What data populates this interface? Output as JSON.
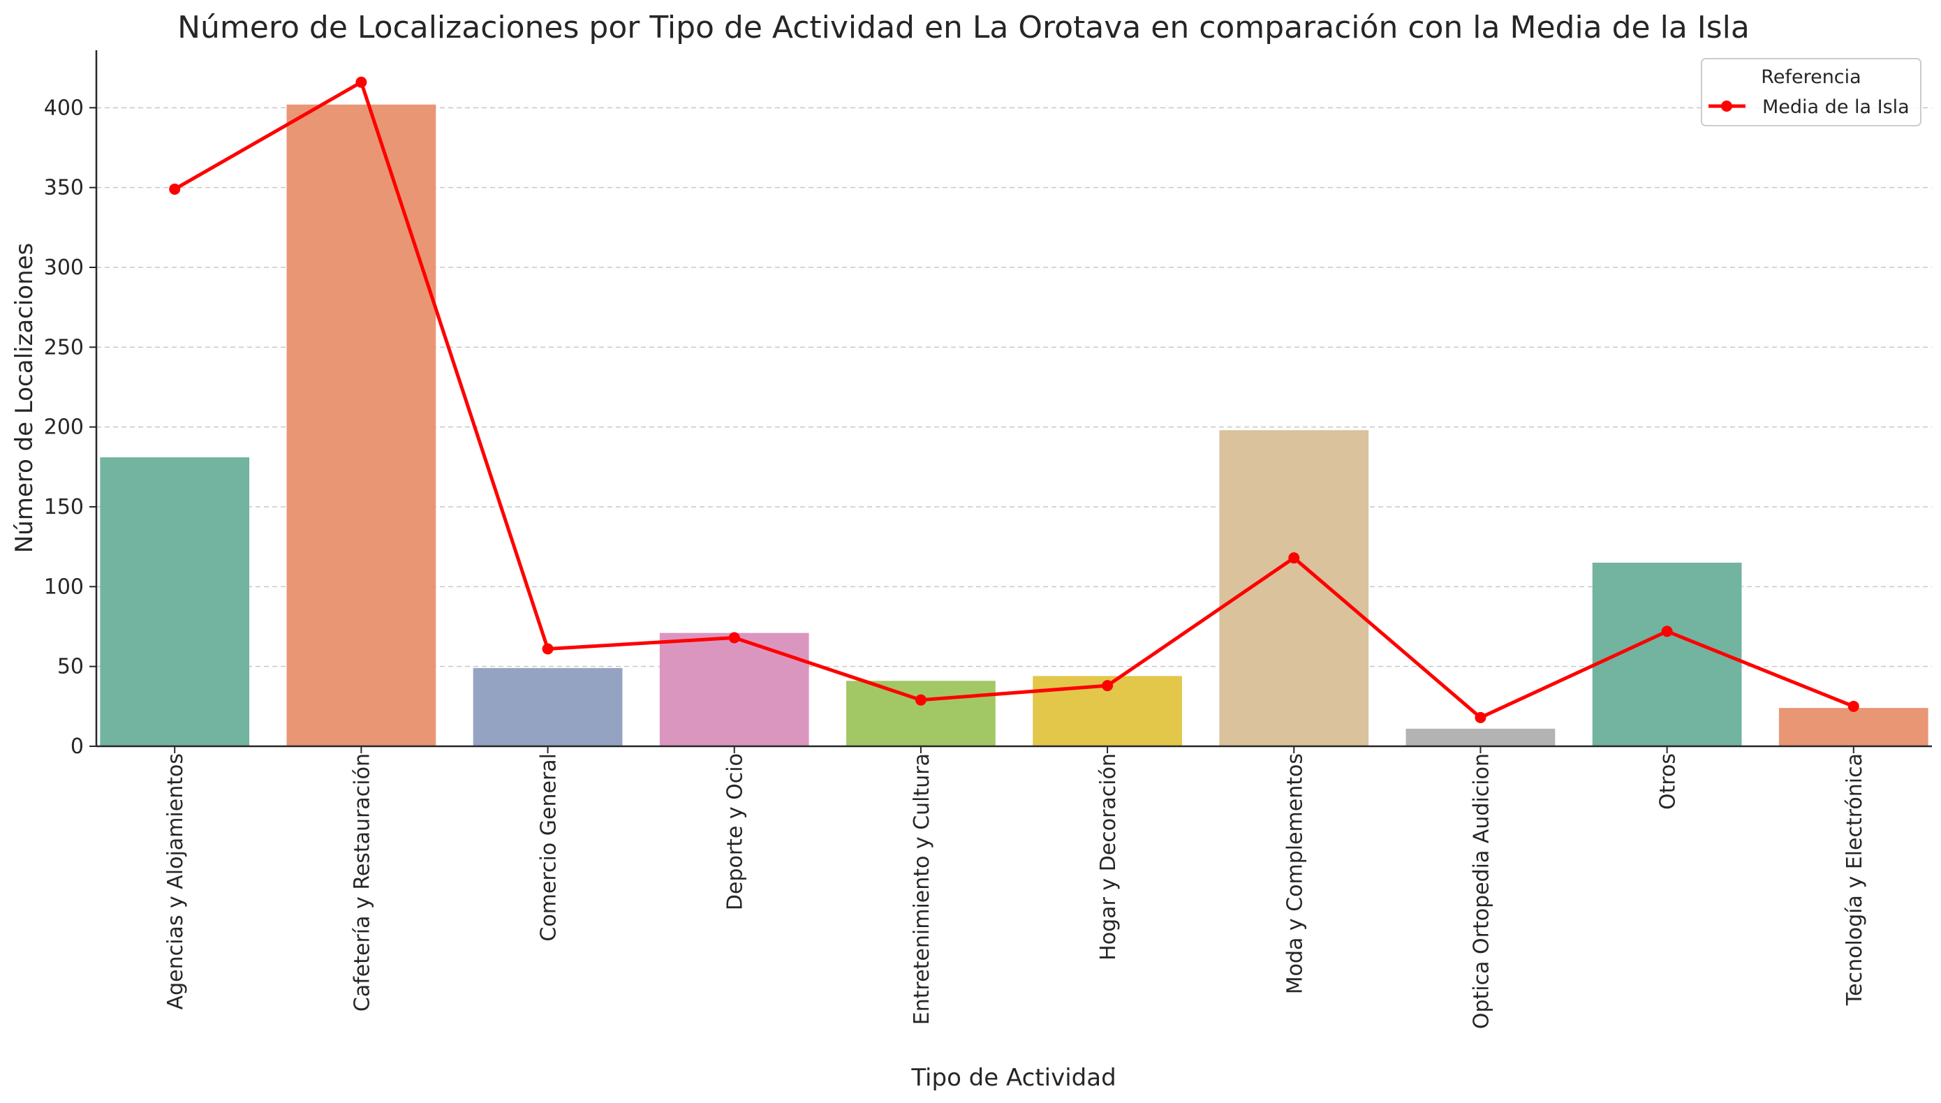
{
  "chart_data": {
    "type": "bar",
    "title": "Número de Localizaciones por Tipo de Actividad en La Orotava en comparación con la Media de la Isla",
    "xlabel": "Tipo de Actividad",
    "ylabel": "Número de Localizaciones",
    "ylim": [
      0,
      436
    ],
    "yticks": [
      0,
      50,
      100,
      150,
      200,
      250,
      300,
      350,
      400
    ],
    "grid": "y-dashed",
    "categories": [
      "Agencias y Alojamientos",
      "Cafetería y Restauración",
      "Comercio General",
      "Deporte y Ocio",
      "Entretenimiento y Cultura",
      "Hogar y Decoración",
      "Moda y Complementos",
      "Optica Ortopedia Audicion",
      "Otros",
      "Tecnología y Electrónica"
    ],
    "values": [
      181,
      402,
      49,
      71,
      41,
      44,
      198,
      11,
      115,
      24
    ],
    "bar_colors": [
      "#72b4a0",
      "#e99675",
      "#95a3c3",
      "#db96c0",
      "#a2c865",
      "#e2c74a",
      "#d9c29c",
      "#b3b3b3",
      "#72b4a0",
      "#e99675"
    ],
    "series": [
      {
        "name": "Media de la Isla",
        "type": "line",
        "color": "#ff0000",
        "values": [
          349,
          416,
          61,
          68,
          29,
          38,
          118,
          18,
          72,
          25
        ]
      }
    ],
    "legend": {
      "title": "Referencia",
      "position": "top-right"
    }
  }
}
